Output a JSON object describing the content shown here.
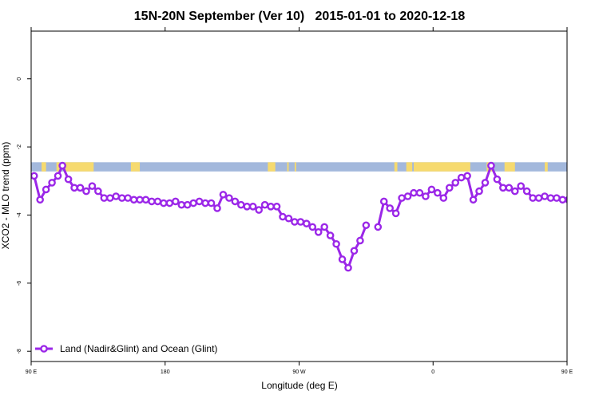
{
  "chart_data": {
    "type": "line",
    "title": "15N-20N September (Ver 10)   2015-01-01 to 2020-12-18",
    "xlabel": "Longitude (deg E)",
    "ylabel": "XCO2 - MLO trend (ppm)",
    "xlim": [
      90,
      450
    ],
    "ylim": [
      -8.3,
      1.4
    ],
    "x_ticks": [
      {
        "value": 90,
        "label": "90 E"
      },
      {
        "value": 180,
        "label": "180"
      },
      {
        "value": 270,
        "label": "90 W"
      },
      {
        "value": 360,
        "label": "0"
      },
      {
        "value": 450,
        "label": "90 E"
      }
    ],
    "x_ticks_top": [
      90,
      180,
      270,
      360,
      450
    ],
    "y_ticks": [
      {
        "value": 0,
        "label": "0"
      },
      {
        "value": -2,
        "label": "-2"
      },
      {
        "value": -4,
        "label": "-4"
      },
      {
        "value": -6,
        "label": "-6"
      },
      {
        "value": -8,
        "label": "-8"
      }
    ],
    "grid": false,
    "legend_position": "bottom-left",
    "colors": {
      "series": "#9b27e8",
      "ocean": "#a3b8dc",
      "land": "#f6da6f"
    },
    "land_mask": {
      "y_range": [
        -2.45,
        -2.72
      ],
      "land_segments": [
        [
          97,
          100
        ],
        [
          107,
          109
        ],
        [
          113,
          132
        ],
        [
          157,
          163
        ],
        [
          249,
          254
        ],
        [
          262,
          263
        ],
        [
          267,
          268
        ],
        [
          334,
          336
        ],
        [
          342,
          346
        ],
        [
          347,
          385
        ],
        [
          396,
          400
        ],
        [
          408,
          415
        ],
        [
          435,
          437
        ]
      ]
    },
    "series": [
      {
        "name": "Land (Nadir&Glint) and Ocean (Glint)",
        "x": [
          92,
          96,
          100,
          104,
          108,
          111,
          115,
          119,
          123,
          127,
          131,
          135,
          139,
          143,
          147,
          151,
          155,
          159,
          163,
          167,
          171,
          175,
          179,
          183,
          187,
          191,
          195,
          199,
          203,
          207,
          211,
          215,
          219,
          223,
          227,
          231,
          235,
          239,
          243,
          247,
          251,
          255,
          259,
          263,
          267,
          271,
          275,
          279,
          283,
          287,
          291,
          295,
          299,
          303,
          307,
          311,
          315,
          319,
          323,
          327,
          331,
          335,
          339,
          343,
          347,
          351,
          355,
          359,
          363,
          367,
          371,
          375,
          379,
          383,
          387,
          391,
          395,
          399,
          403,
          407,
          411,
          415,
          419,
          423,
          427,
          431,
          435,
          439,
          443,
          447,
          451
        ],
        "y": [
          -2.85,
          -3.55,
          -3.25,
          -3.05,
          -2.85,
          -2.55,
          -2.95,
          -3.2,
          -3.2,
          -3.3,
          -3.15,
          -3.3,
          -3.5,
          -3.5,
          -3.45,
          -3.5,
          -3.5,
          -3.55,
          -3.55,
          -3.55,
          -3.6,
          -3.6,
          -3.65,
          -3.65,
          -3.6,
          -3.7,
          -3.7,
          -3.65,
          -3.6,
          -3.65,
          -3.65,
          -3.8,
          -3.4,
          -3.5,
          -3.6,
          -3.7,
          -3.75,
          -3.75,
          -3.85,
          -3.7,
          -3.75,
          -3.75,
          -4.05,
          -4.1,
          -4.2,
          -4.2,
          -4.25,
          -4.35,
          -4.5,
          -4.35,
          -4.6,
          -4.85,
          -5.3,
          -5.55,
          -5.05,
          -4.75,
          -4.3,
          null,
          -4.35,
          -3.6,
          -3.8,
          -3.95,
          -3.5,
          -3.45,
          -3.35,
          -3.35,
          -3.45,
          -3.25,
          -3.35,
          -3.5,
          -3.2,
          -3.05,
          -2.9,
          -2.85,
          -3.55,
          -3.3,
          -3.05,
          -2.55,
          -2.95,
          -3.2,
          -3.2,
          -3.3,
          -3.15,
          -3.3,
          -3.5,
          -3.5,
          -3.45,
          -3.5,
          -3.5,
          -3.55,
          -3.55
        ]
      }
    ]
  }
}
